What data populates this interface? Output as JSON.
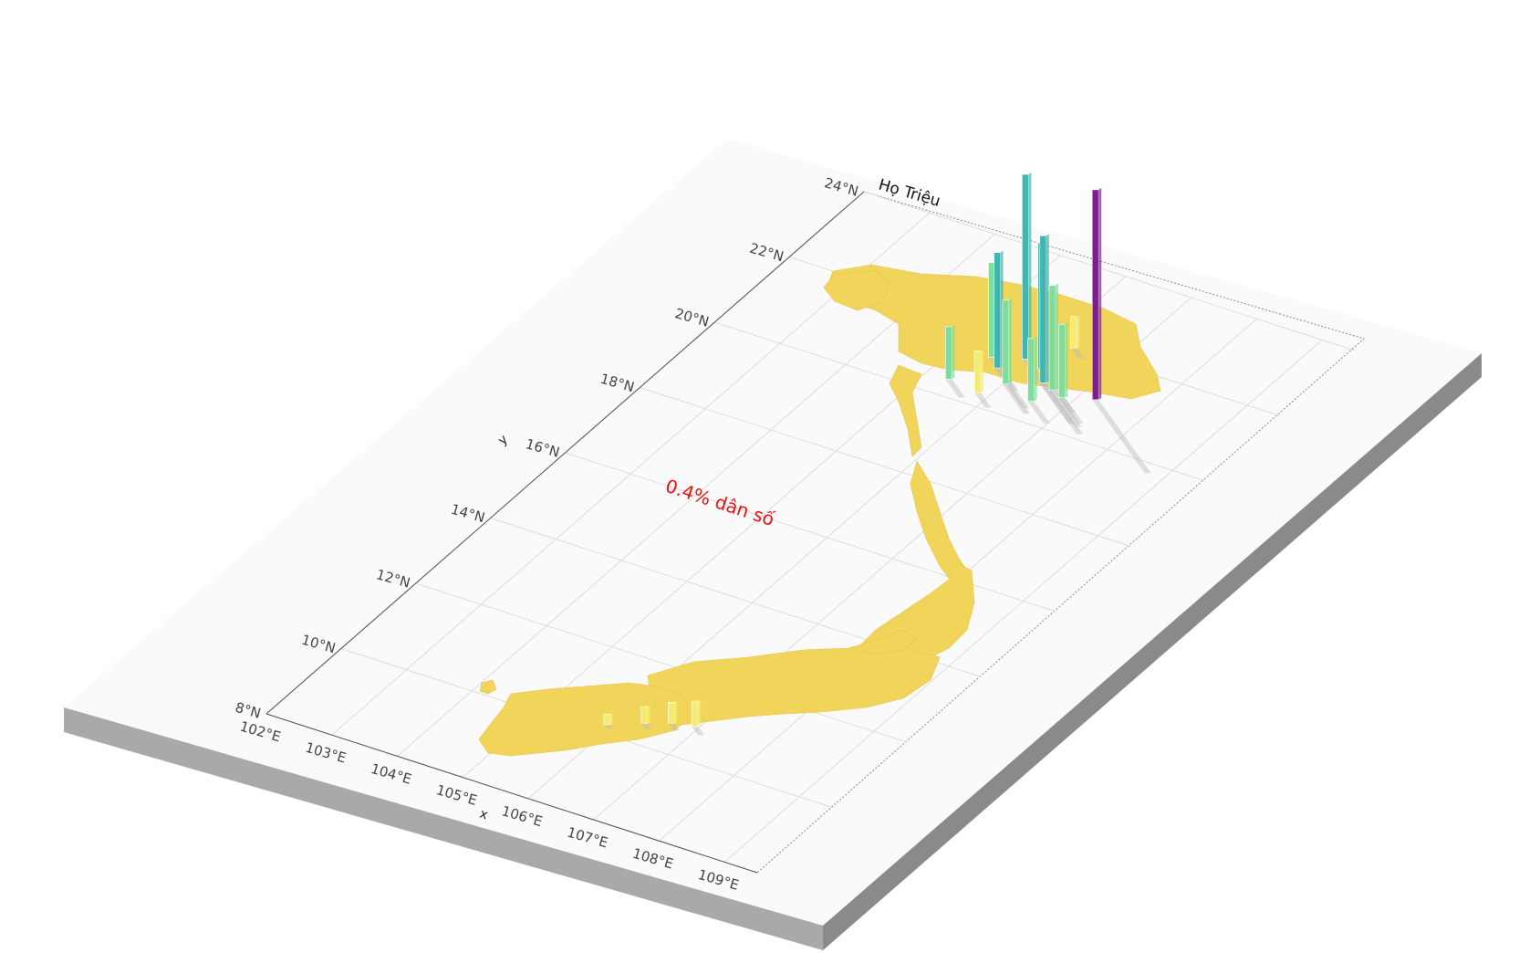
{
  "map": {
    "title": "Họ Triệu",
    "annotation": "0.4% dân số",
    "annotation_color": "#ee1111",
    "x_axis_label": "x",
    "y_axis_label": "y",
    "x_ticks": [
      "102°E",
      "103°E",
      "104°E",
      "105°E",
      "106°E",
      "107°E",
      "108°E",
      "109°E"
    ],
    "y_ticks": [
      "8°N",
      "10°N",
      "12°N",
      "14°N",
      "16°N",
      "18°N",
      "20°N",
      "22°N",
      "24°N"
    ],
    "colors": {
      "base_top": "#fafafa",
      "base_front": "#a9a9a9",
      "base_side": "#8a8a8a",
      "land": "#f1d45a",
      "low_bar": "#f3ec6e",
      "mid_bar": "#7fdc9a",
      "high_bar": "#3fb7b0",
      "peak_bar": "#7b1f8f",
      "grid": "#dddddd"
    },
    "colormap": "viridis (reversed)"
  },
  "chart_data": {
    "type": "bar3d-map",
    "title": "Họ Triệu",
    "xlabel": "x",
    "ylabel": "y",
    "x_range": [
      102,
      109.5
    ],
    "y_range": [
      8,
      24
    ],
    "grid": true,
    "legend": "none",
    "annotation": "0.4% dân số",
    "regions": [
      {
        "lon": 105.9,
        "lat": 21.4,
        "value": 0.88
      },
      {
        "lon": 106.2,
        "lat": 21.3,
        "value": 0.6
      },
      {
        "lon": 106.4,
        "lat": 21.0,
        "value": 0.7
      },
      {
        "lon": 106.6,
        "lat": 20.9,
        "value": 0.5
      },
      {
        "lon": 105.7,
        "lat": 21.0,
        "value": 0.55
      },
      {
        "lon": 105.5,
        "lat": 21.2,
        "value": 0.45
      },
      {
        "lon": 106.0,
        "lat": 20.7,
        "value": 0.4
      },
      {
        "lon": 106.8,
        "lat": 20.8,
        "value": 0.35
      },
      {
        "lon": 105.3,
        "lat": 20.4,
        "value": 0.25
      },
      {
        "lon": 107.2,
        "lat": 21.0,
        "value": 1.0
      },
      {
        "lon": 106.5,
        "lat": 20.5,
        "value": 0.3
      },
      {
        "lon": 105.8,
        "lat": 20.3,
        "value": 0.2
      },
      {
        "lon": 106.3,
        "lat": 22.0,
        "value": 0.15
      },
      {
        "lon": 106.9,
        "lat": 10.8,
        "value": 0.12
      },
      {
        "lon": 106.6,
        "lat": 10.7,
        "value": 0.1
      },
      {
        "lon": 106.3,
        "lat": 10.5,
        "value": 0.08
      },
      {
        "lon": 105.9,
        "lat": 10.2,
        "value": 0.05
      }
    ]
  }
}
